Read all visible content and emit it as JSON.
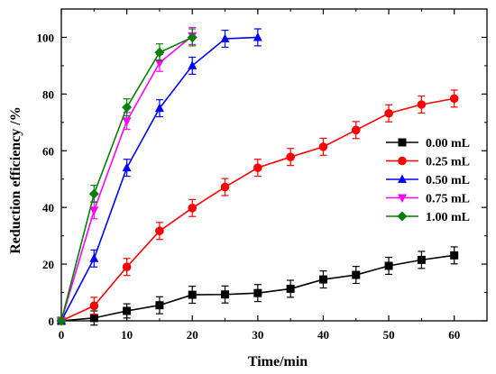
{
  "chart_data": {
    "type": "line",
    "xlabel": "Time/min",
    "ylabel": "Reduction efficiency /%",
    "xlim": [
      0,
      65
    ],
    "ylim": [
      0,
      110
    ],
    "xticks": [
      0,
      10,
      20,
      30,
      40,
      50,
      60
    ],
    "yticks": [
      0,
      20,
      40,
      60,
      80,
      100
    ],
    "legend_position": "right-middle",
    "grid": false,
    "series": [
      {
        "name": "0.00 mL",
        "color": "#000000",
        "marker": "square",
        "x": [
          0,
          5,
          10,
          15,
          20,
          25,
          30,
          35,
          40,
          45,
          50,
          55,
          60
        ],
        "y": [
          0,
          1,
          3.5,
          5.5,
          9.2,
          9.3,
          9.8,
          11.3,
          14.6,
          16.2,
          19.4,
          21.5,
          23.1
        ],
        "err": [
          1.5,
          2.5,
          2.5,
          3,
          3,
          3,
          3,
          3,
          3,
          3,
          3,
          3,
          3
        ]
      },
      {
        "name": "0.25 mL",
        "color": "#ff0000",
        "marker": "circle",
        "x": [
          0,
          5,
          10,
          15,
          20,
          25,
          30,
          35,
          40,
          45,
          50,
          55,
          60
        ],
        "y": [
          0,
          5.3,
          19,
          31.7,
          39.8,
          47.2,
          54,
          57.8,
          61.4,
          67.3,
          73.2,
          76.3,
          78.4
        ],
        "err": [
          1.5,
          3,
          3,
          3,
          3,
          3,
          3,
          3,
          3,
          3,
          3,
          3,
          3
        ]
      },
      {
        "name": "0.50 mL",
        "color": "#0000ff",
        "marker": "triangle-up",
        "x": [
          0,
          5,
          10,
          15,
          20,
          25,
          30
        ],
        "y": [
          0,
          22,
          54,
          75,
          90,
          99.5,
          100
        ],
        "err": [
          1.5,
          3,
          3,
          3,
          3,
          3,
          3
        ]
      },
      {
        "name": "0.75 mL",
        "color": "#ff00ff",
        "marker": "triangle-down",
        "x": [
          0,
          5,
          10,
          15,
          20
        ],
        "y": [
          0,
          39,
          70.5,
          91,
          100.5
        ],
        "err": [
          1.5,
          3,
          3,
          3,
          3
        ]
      },
      {
        "name": "1.00 mL",
        "color": "#008000",
        "marker": "diamond",
        "x": [
          0,
          5,
          10,
          15,
          20
        ],
        "y": [
          0,
          44.8,
          75.3,
          94.7,
          100
        ],
        "err": [
          1.5,
          3,
          3,
          3,
          3
        ]
      }
    ]
  }
}
